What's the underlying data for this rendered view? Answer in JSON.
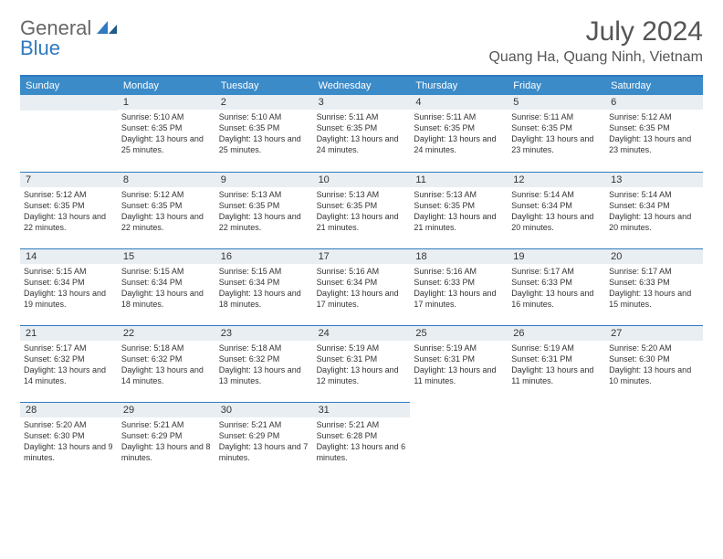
{
  "logo": {
    "general": "General",
    "blue": "Blue"
  },
  "header": {
    "title": "July 2024",
    "location": "Quang Ha, Quang Ninh, Vietnam"
  },
  "colors": {
    "dayhead_bg": "#3b8bc9",
    "dayhead_fg": "#ffffff",
    "daynum_bg": "#e9eef2",
    "border": "#2f7ac0",
    "text": "#333333"
  },
  "days": [
    "Sunday",
    "Monday",
    "Tuesday",
    "Wednesday",
    "Thursday",
    "Friday",
    "Saturday"
  ],
  "leading_blanks": 1,
  "cells": [
    {
      "n": 1,
      "sr": "5:10 AM",
      "ss": "6:35 PM",
      "dl": "13 hours and 25 minutes."
    },
    {
      "n": 2,
      "sr": "5:10 AM",
      "ss": "6:35 PM",
      "dl": "13 hours and 25 minutes."
    },
    {
      "n": 3,
      "sr": "5:11 AM",
      "ss": "6:35 PM",
      "dl": "13 hours and 24 minutes."
    },
    {
      "n": 4,
      "sr": "5:11 AM",
      "ss": "6:35 PM",
      "dl": "13 hours and 24 minutes."
    },
    {
      "n": 5,
      "sr": "5:11 AM",
      "ss": "6:35 PM",
      "dl": "13 hours and 23 minutes."
    },
    {
      "n": 6,
      "sr": "5:12 AM",
      "ss": "6:35 PM",
      "dl": "13 hours and 23 minutes."
    },
    {
      "n": 7,
      "sr": "5:12 AM",
      "ss": "6:35 PM",
      "dl": "13 hours and 22 minutes."
    },
    {
      "n": 8,
      "sr": "5:12 AM",
      "ss": "6:35 PM",
      "dl": "13 hours and 22 minutes."
    },
    {
      "n": 9,
      "sr": "5:13 AM",
      "ss": "6:35 PM",
      "dl": "13 hours and 22 minutes."
    },
    {
      "n": 10,
      "sr": "5:13 AM",
      "ss": "6:35 PM",
      "dl": "13 hours and 21 minutes."
    },
    {
      "n": 11,
      "sr": "5:13 AM",
      "ss": "6:35 PM",
      "dl": "13 hours and 21 minutes."
    },
    {
      "n": 12,
      "sr": "5:14 AM",
      "ss": "6:34 PM",
      "dl": "13 hours and 20 minutes."
    },
    {
      "n": 13,
      "sr": "5:14 AM",
      "ss": "6:34 PM",
      "dl": "13 hours and 20 minutes."
    },
    {
      "n": 14,
      "sr": "5:15 AM",
      "ss": "6:34 PM",
      "dl": "13 hours and 19 minutes."
    },
    {
      "n": 15,
      "sr": "5:15 AM",
      "ss": "6:34 PM",
      "dl": "13 hours and 18 minutes."
    },
    {
      "n": 16,
      "sr": "5:15 AM",
      "ss": "6:34 PM",
      "dl": "13 hours and 18 minutes."
    },
    {
      "n": 17,
      "sr": "5:16 AM",
      "ss": "6:34 PM",
      "dl": "13 hours and 17 minutes."
    },
    {
      "n": 18,
      "sr": "5:16 AM",
      "ss": "6:33 PM",
      "dl": "13 hours and 17 minutes."
    },
    {
      "n": 19,
      "sr": "5:17 AM",
      "ss": "6:33 PM",
      "dl": "13 hours and 16 minutes."
    },
    {
      "n": 20,
      "sr": "5:17 AM",
      "ss": "6:33 PM",
      "dl": "13 hours and 15 minutes."
    },
    {
      "n": 21,
      "sr": "5:17 AM",
      "ss": "6:32 PM",
      "dl": "13 hours and 14 minutes."
    },
    {
      "n": 22,
      "sr": "5:18 AM",
      "ss": "6:32 PM",
      "dl": "13 hours and 14 minutes."
    },
    {
      "n": 23,
      "sr": "5:18 AM",
      "ss": "6:32 PM",
      "dl": "13 hours and 13 minutes."
    },
    {
      "n": 24,
      "sr": "5:19 AM",
      "ss": "6:31 PM",
      "dl": "13 hours and 12 minutes."
    },
    {
      "n": 25,
      "sr": "5:19 AM",
      "ss": "6:31 PM",
      "dl": "13 hours and 11 minutes."
    },
    {
      "n": 26,
      "sr": "5:19 AM",
      "ss": "6:31 PM",
      "dl": "13 hours and 11 minutes."
    },
    {
      "n": 27,
      "sr": "5:20 AM",
      "ss": "6:30 PM",
      "dl": "13 hours and 10 minutes."
    },
    {
      "n": 28,
      "sr": "5:20 AM",
      "ss": "6:30 PM",
      "dl": "13 hours and 9 minutes."
    },
    {
      "n": 29,
      "sr": "5:21 AM",
      "ss": "6:29 PM",
      "dl": "13 hours and 8 minutes."
    },
    {
      "n": 30,
      "sr": "5:21 AM",
      "ss": "6:29 PM",
      "dl": "13 hours and 7 minutes."
    },
    {
      "n": 31,
      "sr": "5:21 AM",
      "ss": "6:28 PM",
      "dl": "13 hours and 6 minutes."
    }
  ],
  "labels": {
    "sunrise": "Sunrise:",
    "sunset": "Sunset:",
    "daylight": "Daylight:"
  }
}
